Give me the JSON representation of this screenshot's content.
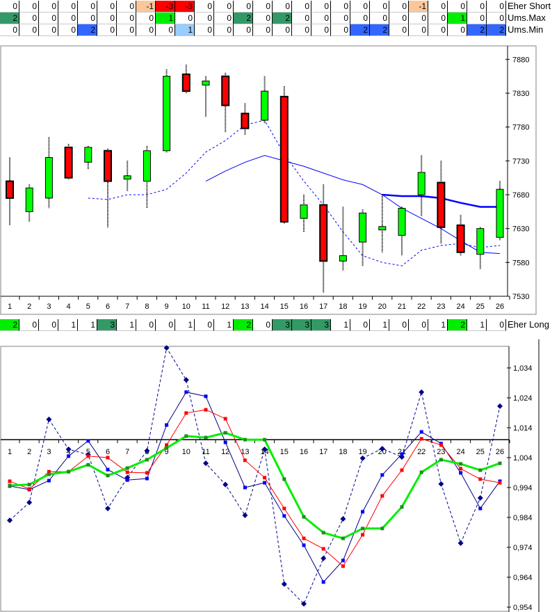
{
  "colors": {
    "neg1": "#fbc79a",
    "neg3": "#ff0000",
    "pos1": "#00ee00",
    "pos2": "#339966",
    "pos3": "#339966",
    "min1": "#99ccff",
    "min2": "#3366ff",
    "long1": "#339966",
    "long2": "#00ee00",
    "up": "#00ff00",
    "down": "#ff0000"
  },
  "rows_top": [
    {
      "label": "Eher Short",
      "kind": "short",
      "values": [
        0,
        0,
        0,
        0,
        0,
        0,
        0,
        -1,
        -3,
        -3,
        0,
        0,
        0,
        0,
        0,
        0,
        0,
        0,
        0,
        0,
        0,
        -1,
        0,
        0,
        0,
        0
      ]
    },
    {
      "label": "Ums.Max",
      "kind": "max",
      "values": [
        2,
        0,
        0,
        0,
        0,
        0,
        0,
        0,
        1,
        0,
        0,
        0,
        2,
        0,
        2,
        0,
        0,
        0,
        0,
        0,
        0,
        0,
        0,
        1,
        0,
        0
      ]
    },
    {
      "label": "Ums.Min",
      "kind": "min",
      "values": [
        0,
        0,
        0,
        0,
        2,
        0,
        0,
        0,
        0,
        1,
        0,
        0,
        0,
        0,
        0,
        0,
        0,
        0,
        2,
        2,
        0,
        0,
        0,
        0,
        2,
        2
      ]
    }
  ],
  "row_long": {
    "label": "Eher Long",
    "kind": "long",
    "values": [
      2,
      0,
      0,
      1,
      1,
      3,
      1,
      0,
      0,
      1,
      0,
      1,
      2,
      0,
      3,
      3,
      3,
      1,
      0,
      1,
      0,
      0,
      1,
      2,
      1,
      0
    ]
  },
  "chart_data": [
    {
      "type": "candlestick",
      "categories": [
        "1",
        "2",
        "3",
        "4",
        "5",
        "6",
        "7",
        "8",
        "9",
        "10",
        "11",
        "12",
        "13",
        "14",
        "15",
        "16",
        "17",
        "18",
        "19",
        "20",
        "21",
        "22",
        "23",
        "24",
        "25",
        "26"
      ],
      "ylim": [
        7530,
        7880
      ],
      "yticks": [
        "7530",
        "7580",
        "7630",
        "7680",
        "7730",
        "7780",
        "7830",
        "7880"
      ],
      "ohlc": [
        [
          7700,
          7735,
          7635,
          7675
        ],
        [
          7655,
          7695,
          7640,
          7690
        ],
        [
          7675,
          7765,
          7660,
          7735
        ],
        [
          7750,
          7755,
          7703,
          7705
        ],
        [
          7728,
          7752,
          7718,
          7750
        ],
        [
          7745,
          7748,
          7632,
          7700
        ],
        [
          7703,
          7730,
          7685,
          7708
        ],
        [
          7700,
          7752,
          7660,
          7745
        ],
        [
          7745,
          7865,
          7742,
          7855
        ],
        [
          7858,
          7872,
          7830,
          7833
        ],
        [
          7842,
          7855,
          7795,
          7848
        ],
        [
          7855,
          7860,
          7772,
          7812
        ],
        [
          7800,
          7815,
          7768,
          7778
        ],
        [
          7790,
          7855,
          7785,
          7833
        ],
        [
          7825,
          7840,
          7637,
          7640
        ],
        [
          7645,
          7680,
          7625,
          7665
        ],
        [
          7665,
          7695,
          7535,
          7582
        ],
        [
          7582,
          7662,
          7568,
          7590
        ],
        [
          7610,
          7658,
          7575,
          7653
        ],
        [
          7628,
          7680,
          7595,
          7633
        ],
        [
          7620,
          7662,
          7590,
          7660
        ],
        [
          7680,
          7738,
          7648,
          7713
        ],
        [
          7698,
          7730,
          7608,
          7632
        ],
        [
          7635,
          7650,
          7590,
          7595
        ],
        [
          7592,
          7632,
          7570,
          7630
        ],
        [
          7617,
          7700,
          7613,
          7688
        ]
      ],
      "lines": [
        {
          "style": "dashed",
          "color": "#0000ff",
          "start": 5,
          "values": [
            7675,
            7673,
            7680,
            7680,
            7688,
            7712,
            7743,
            7760,
            7783,
            7790,
            7740,
            7700,
            7665,
            7625,
            7590,
            7580,
            7575,
            7598,
            7605,
            7608,
            7602,
            7605
          ]
        },
        {
          "style": "thin",
          "color": "#0000ff",
          "start": 11,
          "values": [
            7700,
            7715,
            7728,
            7738,
            7730,
            7722,
            7712,
            7702,
            7695,
            7680,
            7660,
            7645,
            7630,
            7612,
            7595,
            7593
          ]
        },
        {
          "style": "thick",
          "color": "#0000ff",
          "start": 20,
          "values": [
            7680,
            7678,
            7678,
            7675,
            7668,
            7662,
            7662
          ]
        }
      ]
    },
    {
      "type": "line",
      "categories": [
        "1",
        "2",
        "3",
        "4",
        "5",
        "6",
        "7",
        "8",
        "9",
        "10",
        "11",
        "12",
        "13",
        "14",
        "15",
        "16",
        "17",
        "18",
        "19",
        "20",
        "21",
        "22",
        "23",
        "24",
        "25",
        "26"
      ],
      "ylim": [
        0.954,
        1.04
      ],
      "baseline": 1.01,
      "yticks": [
        "0,954",
        "0,964",
        "0,974",
        "0,984",
        "0,994",
        "1,004",
        "1,014",
        "1,024",
        "1,034"
      ],
      "series": [
        {
          "style": "dashed-diamond",
          "color": "#00008b",
          "values": [
            0.983,
            0.989,
            1.0168,
            1.0068,
            1.005,
            0.987,
            0.9973,
            1.0063,
            1.0407,
            1.03,
            1.0021,
            0.995,
            0.9847,
            1.0068,
            0.9617,
            0.9551,
            0.9703,
            0.9835,
            1.0038,
            1.007,
            1.0042,
            1.0259,
            0.9952,
            0.9754,
            0.9905,
            1.0212
          ]
        },
        {
          "style": "thin",
          "color": "#000080",
          "marker": "#0000ff",
          "values": [
            0.9945,
            0.9933,
            0.9963,
            1.0045,
            1.0096,
            1.0,
            0.9965,
            0.997,
            1.0149,
            1.0259,
            1.0245,
            1.0091,
            0.994,
            0.9956,
            0.9845,
            0.9747,
            0.9624,
            0.9696,
            0.9859,
            0.9982,
            1.0052,
            1.0126,
            1.0087,
            0.9989,
            0.987,
            0.9961
          ]
        },
        {
          "style": "thin",
          "color": "#ff0000",
          "marker": "#ff0000",
          "values": [
            0.9961,
            0.9935,
            0.9993,
            0.9993,
            1.0045,
            1.004,
            0.9991,
            0.9989,
            1.0082,
            1.0189,
            1.02,
            1.017,
            1.0031,
            0.9973,
            0.987,
            0.977,
            0.9735,
            0.9677,
            0.9782,
            0.9912,
            0.9998,
            1.0103,
            1.0082,
            1.0003,
            0.9968,
            0.9956
          ]
        },
        {
          "style": "thick",
          "color": "#00ee00",
          "marker": "#228b22",
          "values": [
            0.9947,
            0.995,
            0.9984,
            0.9993,
            1.0016,
            0.998,
            1.0005,
            1.0033,
            1.0072,
            1.0112,
            1.0107,
            1.0123,
            1.01,
            1.01,
            0.9968,
            0.9842,
            0.9789,
            0.977,
            0.9803,
            0.9803,
            0.9875,
            0.9991,
            1.0033,
            1.0019,
            0.9998,
            1.0021
          ]
        }
      ]
    }
  ]
}
